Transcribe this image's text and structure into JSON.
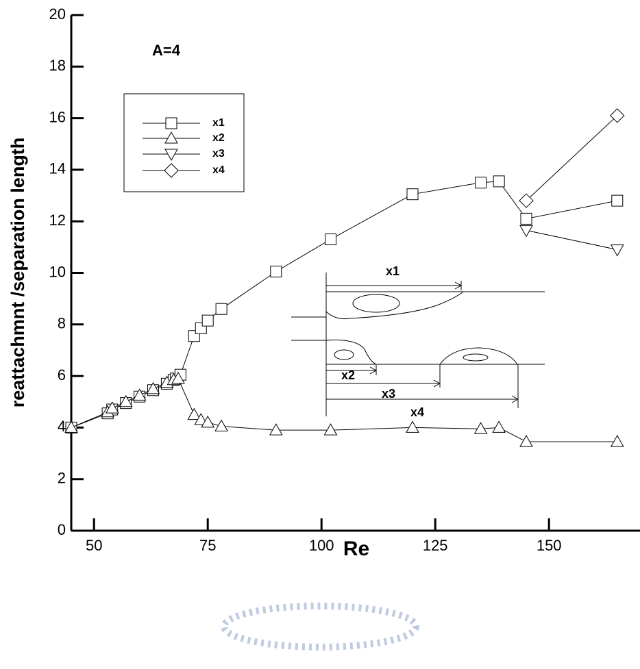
{
  "chart_data": {
    "type": "line",
    "annotation": "A=4",
    "x_label": "Re",
    "y_label": "reattachmnt /separation length",
    "xlim": [
      45,
      170
    ],
    "xticks": [
      50,
      75,
      100,
      125,
      150
    ],
    "ylim": [
      0,
      20
    ],
    "yticks": [
      0,
      2,
      4,
      6,
      8,
      10,
      12,
      14,
      16,
      18,
      20
    ],
    "inset_labels": [
      "x1",
      "x2",
      "x3",
      "x4"
    ],
    "series": [
      {
        "name": "x1",
        "marker": "square",
        "color": "#000000",
        "x": [
          45,
          53,
          54,
          57,
          60,
          63,
          66,
          67.5,
          68,
          69,
          72,
          73.5,
          75,
          78,
          90,
          102,
          120,
          135,
          139,
          145,
          165
        ],
        "values": [
          4.0,
          4.55,
          4.7,
          4.95,
          5.2,
          5.45,
          5.7,
          5.85,
          5.9,
          6.05,
          7.55,
          7.85,
          8.15,
          8.6,
          10.05,
          11.3,
          13.05,
          13.5,
          13.55,
          12.1,
          12.8
        ]
      },
      {
        "name": "x2",
        "marker": "triangle-up",
        "color": "#000000",
        "x": [
          45,
          53,
          54,
          57,
          60,
          63,
          66,
          67.5,
          68.5,
          72,
          73.5,
          75,
          78,
          90,
          102,
          120,
          135,
          139,
          145,
          165
        ],
        "values": [
          4.0,
          4.6,
          4.75,
          5.0,
          5.25,
          5.5,
          5.75,
          5.85,
          5.9,
          4.5,
          4.3,
          4.2,
          4.05,
          3.9,
          3.9,
          4.0,
          3.95,
          4.0,
          3.45,
          3.45
        ]
      },
      {
        "name": "x3",
        "marker": "triangle-down",
        "color": "#000000",
        "x": [
          145,
          165
        ],
        "values": [
          11.65,
          10.9
        ]
      },
      {
        "name": "x4",
        "marker": "diamond",
        "color": "#000000",
        "x": [
          145,
          165
        ],
        "values": [
          12.8,
          16.1
        ]
      }
    ]
  }
}
